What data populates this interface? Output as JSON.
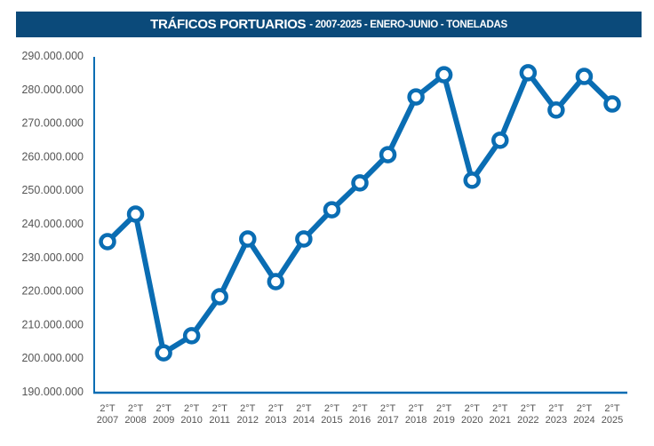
{
  "chart_data": {
    "type": "line",
    "title": "TRÁFICOS PORTUARIOS",
    "subtitle": "- 2007-2025 - ENERO-JUNIO - TONELADAS",
    "xlabel": "",
    "ylabel": "",
    "ylim": [
      190000000,
      290000000
    ],
    "yticks": [
      "190.000.000",
      "200.000.000",
      "210.000.000",
      "220.000.000",
      "230.000.000",
      "240.000.000",
      "250.000.000",
      "260.000.000",
      "270.000.000",
      "280.000.000",
      "290.000.000"
    ],
    "ytick_values": [
      190000000,
      200000000,
      210000000,
      220000000,
      230000000,
      240000000,
      250000000,
      260000000,
      270000000,
      280000000,
      290000000
    ],
    "categories": [
      {
        "q": "2°T",
        "year": "2007"
      },
      {
        "q": "2°T",
        "year": "2008"
      },
      {
        "q": "2°T",
        "year": "2009"
      },
      {
        "q": "2°T",
        "year": "2010"
      },
      {
        "q": "2°T",
        "year": "2011"
      },
      {
        "q": "2°T",
        "year": "2012"
      },
      {
        "q": "2°T",
        "year": "2013"
      },
      {
        "q": "2°T",
        "year": "2014"
      },
      {
        "q": "2°T",
        "year": "2015"
      },
      {
        "q": "2°T",
        "year": "2016"
      },
      {
        "q": "2°T",
        "year": "2017"
      },
      {
        "q": "2°T",
        "year": "2018"
      },
      {
        "q": "2°T",
        "year": "2019"
      },
      {
        "q": "2°T",
        "year": "2020"
      },
      {
        "q": "2°T",
        "year": "2021"
      },
      {
        "q": "2°T",
        "year": "2022"
      },
      {
        "q": "2°T",
        "year": "2023"
      },
      {
        "q": "2°T",
        "year": "2024"
      },
      {
        "q": "2°T",
        "year": "2025"
      }
    ],
    "values": [
      234700000,
      242900000,
      201600000,
      206700000,
      218300000,
      235500000,
      222800000,
      235500000,
      244200000,
      252200000,
      260600000,
      277800000,
      284400000,
      253000000,
      264900000,
      285000000,
      273900000,
      283900000,
      275700000
    ],
    "grid": false,
    "legend": "none",
    "colors": {
      "line": "#0a6db3",
      "title_bar": "#0b4a7a",
      "axis": "#0a6db3"
    }
  }
}
